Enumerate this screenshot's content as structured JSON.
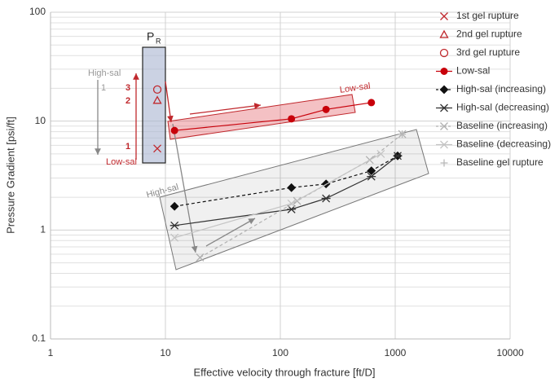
{
  "chart_data": {
    "type": "scatter",
    "log_x": true,
    "log_y": true,
    "xlabel": "Effective velocity through fracture [ft/D]",
    "ylabel": "Pressure Gradient [psi/ft]",
    "xlim": [
      1,
      10000
    ],
    "ylim": [
      0.1,
      100
    ],
    "xticks": [
      1,
      10,
      100,
      1000,
      10000
    ],
    "yticks": [
      0.1,
      1,
      10,
      100
    ],
    "grid": true,
    "series": [
      {
        "name": "1st gel rupture",
        "color": "#c0282d",
        "marker": "x",
        "linestyle": "none",
        "x": [
          8.5
        ],
        "values": [
          5.6
        ]
      },
      {
        "name": "2nd gel rupture",
        "color": "#c0282d",
        "marker": "triangle",
        "linestyle": "none",
        "x": [
          8.5
        ],
        "values": [
          15.5
        ]
      },
      {
        "name": "3rd gel rupture",
        "color": "#c0282d",
        "marker": "circle-open",
        "linestyle": "none",
        "x": [
          8.5
        ],
        "values": [
          19.5
        ]
      },
      {
        "name": "Low-sal",
        "color": "#c8000a",
        "marker": "circle",
        "linestyle": "solid",
        "x": [
          12,
          125,
          250,
          620
        ],
        "values": [
          8.2,
          10.5,
          12.8,
          14.8
        ]
      },
      {
        "name": "High-sal (increasing)",
        "color": "#111111",
        "marker": "diamond",
        "linestyle": "dashed",
        "x": [
          12,
          125,
          250,
          620,
          1050
        ],
        "values": [
          1.65,
          2.45,
          2.65,
          3.5,
          4.8
        ]
      },
      {
        "name": "High-sal (decreasing)",
        "color": "#333333",
        "marker": "asterisk",
        "linestyle": "solid",
        "x": [
          12,
          125,
          250,
          620,
          1050
        ],
        "values": [
          1.1,
          1.55,
          1.95,
          3.1,
          4.8
        ]
      },
      {
        "name": "Baseline (increasing)",
        "color": "#b0b0b0",
        "marker": "x",
        "linestyle": "dashed",
        "x": [
          20,
          140,
          600,
          1150
        ],
        "values": [
          0.56,
          1.85,
          4.4,
          7.6
        ]
      },
      {
        "name": "Baseline (decreasing)",
        "color": "#c4c4c4",
        "marker": "x",
        "linestyle": "solid",
        "x": [
          12,
          125,
          750
        ],
        "values": [
          0.85,
          1.75,
          5.0
        ]
      },
      {
        "name": "Baseline gel rupture",
        "color": "#b8b8b8",
        "marker": "plus",
        "linestyle": "none",
        "x": [
          1150
        ],
        "values": [
          7.6
        ]
      }
    ],
    "annotations": [
      "P",
      "R",
      "High-sal",
      "1",
      "3",
      "2",
      "1",
      "Low-sal",
      "Low-sal",
      "High-sal"
    ]
  }
}
